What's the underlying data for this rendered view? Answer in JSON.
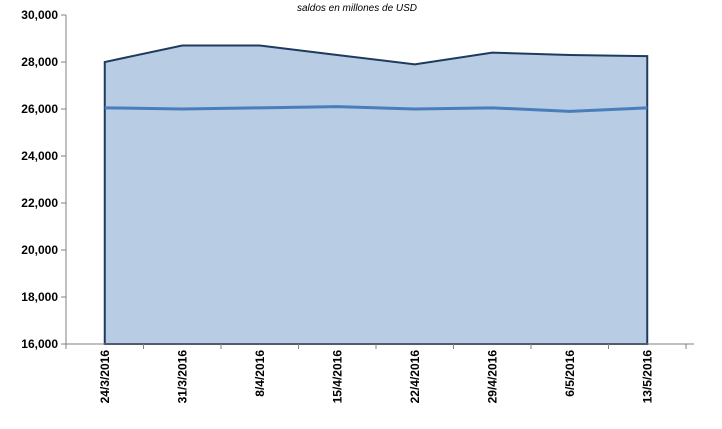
{
  "chart_data": {
    "type": "area",
    "title": "",
    "subtitle": "saldos en millones de USD",
    "xlabel": "",
    "ylabel": "",
    "categories": [
      "24/3/2016",
      "31/3/2016",
      "8/4/2016",
      "15/4/2016",
      "22/4/2016",
      "29/4/2016",
      "6/5/2016",
      "13/5/2016"
    ],
    "ylim": [
      16000,
      30000
    ],
    "yticks": [
      "16,000",
      "18,000",
      "20,000",
      "22,000",
      "24,000",
      "26,000",
      "28,000",
      "30,000"
    ],
    "series": [
      {
        "type": "area",
        "values": [
          28000,
          28700,
          28700,
          28300,
          27900,
          28400,
          28300,
          28250
        ]
      },
      {
        "type": "line",
        "values": [
          26050,
          26000,
          26050,
          26100,
          26000,
          26050,
          25900,
          26050
        ]
      }
    ],
    "grid": false,
    "colors": {
      "area_fill": "#b8cce4",
      "area_line": "#1f3a5f",
      "line": "#4a7ebb"
    }
  }
}
